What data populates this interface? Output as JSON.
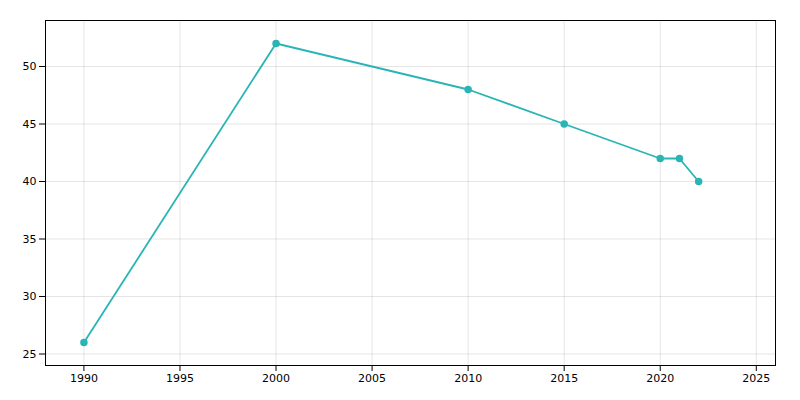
{
  "chart_data": {
    "type": "line",
    "x": [
      1990,
      2000,
      2010,
      2015,
      2020,
      2021,
      2022
    ],
    "values": [
      26,
      52,
      48,
      45,
      42,
      42,
      40
    ],
    "color": "#2ab5b5",
    "marker": "circle",
    "xlim": [
      1988,
      2026
    ],
    "ylim": [
      24,
      54
    ],
    "xticks": [
      1990,
      1995,
      2000,
      2005,
      2010,
      2015,
      2020,
      2025
    ],
    "yticks": [
      25,
      30,
      35,
      40,
      45,
      50
    ],
    "grid": true
  }
}
